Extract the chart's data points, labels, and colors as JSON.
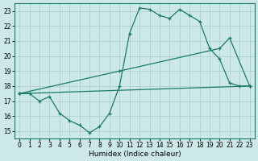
{
  "xlabel": "Humidex (Indice chaleur)",
  "bg_color": "#cce8e8",
  "grid_color": "#b0d0d0",
  "line_color": "#1a7a6a",
  "ylim": [
    14.5,
    23.5
  ],
  "xlim": [
    -0.5,
    23.5
  ],
  "yticks": [
    15,
    16,
    17,
    18,
    19,
    20,
    21,
    22,
    23
  ],
  "xticks": [
    0,
    1,
    2,
    3,
    4,
    5,
    6,
    7,
    8,
    9,
    10,
    11,
    12,
    13,
    14,
    15,
    16,
    17,
    18,
    19,
    20,
    21,
    22,
    23
  ],
  "line1_x": [
    0,
    1,
    2,
    3,
    4,
    5,
    6,
    7,
    8,
    9,
    10,
    11,
    12,
    13,
    14,
    15,
    16,
    17,
    18,
    19,
    20,
    21,
    22,
    23
  ],
  "line1_y": [
    17.5,
    17.5,
    17.0,
    17.3,
    16.2,
    15.7,
    15.4,
    14.9,
    15.3,
    16.2,
    18.0,
    21.5,
    23.2,
    23.1,
    22.7,
    22.5,
    23.1,
    22.7,
    22.3,
    20.5,
    19.8,
    18.2,
    18.0,
    18.0
  ],
  "line2_x": [
    0,
    10,
    20,
    21,
    23
  ],
  "line2_y": [
    17.5,
    19.0,
    20.5,
    21.2,
    18.0
  ],
  "line3_x": [
    0,
    23
  ],
  "line3_y": [
    17.5,
    18.0
  ],
  "tick_fontsize": 5.5,
  "xlabel_fontsize": 6.5,
  "linewidth": 0.9,
  "markersize": 3
}
